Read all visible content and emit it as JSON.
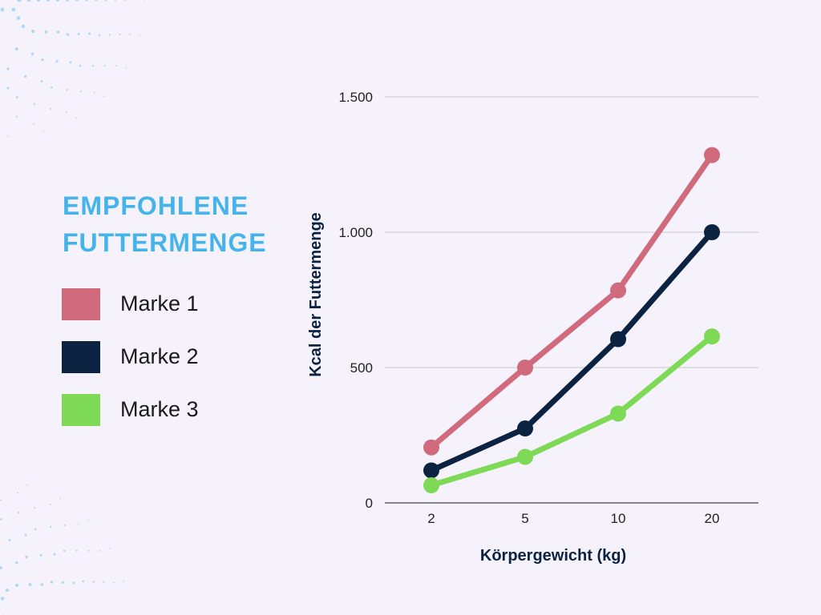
{
  "chart_data": {
    "type": "line",
    "title": "EMPFOHLENE FUTTERMENGE",
    "title_lines": [
      "EMPFOHLENE",
      "FUTTERMENGE"
    ],
    "xlabel": "Körpergewicht (kg)",
    "ylabel": "Kcal der Futtermenge",
    "categories": [
      "2",
      "5",
      "10",
      "20"
    ],
    "ylim": [
      0,
      1500
    ],
    "yticks": [
      0,
      500,
      1000,
      1500
    ],
    "ytick_labels": [
      "0",
      "500",
      "1.000",
      "1.500"
    ],
    "grid": true,
    "legend_position": "left",
    "series": [
      {
        "name": "Marke 1",
        "color": "#d06a7c",
        "values": [
          205,
          500,
          785,
          1285
        ]
      },
      {
        "name": "Marke 2",
        "color": "#0b2340",
        "values": [
          120,
          275,
          605,
          1000
        ]
      },
      {
        "name": "Marke 3",
        "color": "#7ed957",
        "values": [
          65,
          170,
          330,
          615
        ]
      }
    ]
  },
  "colors": {
    "background": "#f5f2fb",
    "title": "#45b4ea",
    "axis_title": "#0b2340",
    "decoration_dots": "#9fd5f2"
  }
}
